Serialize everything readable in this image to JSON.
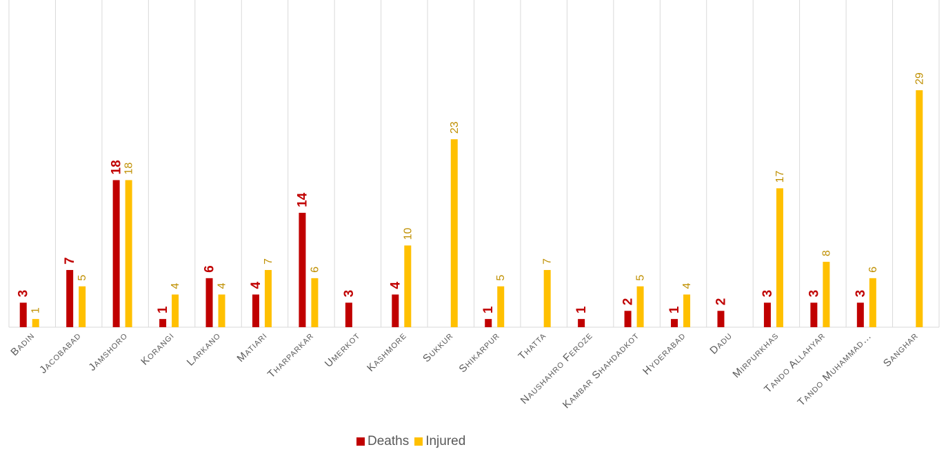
{
  "chart_data": {
    "type": "bar",
    "categories": [
      "Badin",
      "Jacobabad",
      "Jamshoro",
      "Korangi",
      "Larkano",
      "Matiari",
      "Tharparkar",
      "Umerkot",
      "Kashmore",
      "Sukkur",
      "Shikarpur",
      "Thatta",
      "Naushahro Feroze",
      "Kambar Shahdadkot",
      "Hyderabad",
      "Dadu",
      "Mirpurkhas",
      "Tando Allahyar",
      "Tando Muhammad…",
      "Sanghar"
    ],
    "series": [
      {
        "name": "Deaths",
        "color": "#C00000",
        "values": [
          3,
          7,
          18,
          1,
          6,
          4,
          14,
          3,
          4,
          null,
          1,
          null,
          1,
          2,
          1,
          2,
          3,
          3,
          3,
          null
        ]
      },
      {
        "name": "Injured",
        "color": "#FFC000",
        "label_color": "#BF8F00",
        "values": [
          1,
          5,
          18,
          4,
          4,
          7,
          6,
          null,
          10,
          23,
          5,
          7,
          null,
          5,
          4,
          null,
          17,
          8,
          6,
          29
        ]
      }
    ],
    "ylim": [
      0,
      30
    ],
    "grid": "vertical category separators",
    "legend_position": "bottom"
  },
  "legend": {
    "deaths": "Deaths",
    "injured": "Injured"
  }
}
